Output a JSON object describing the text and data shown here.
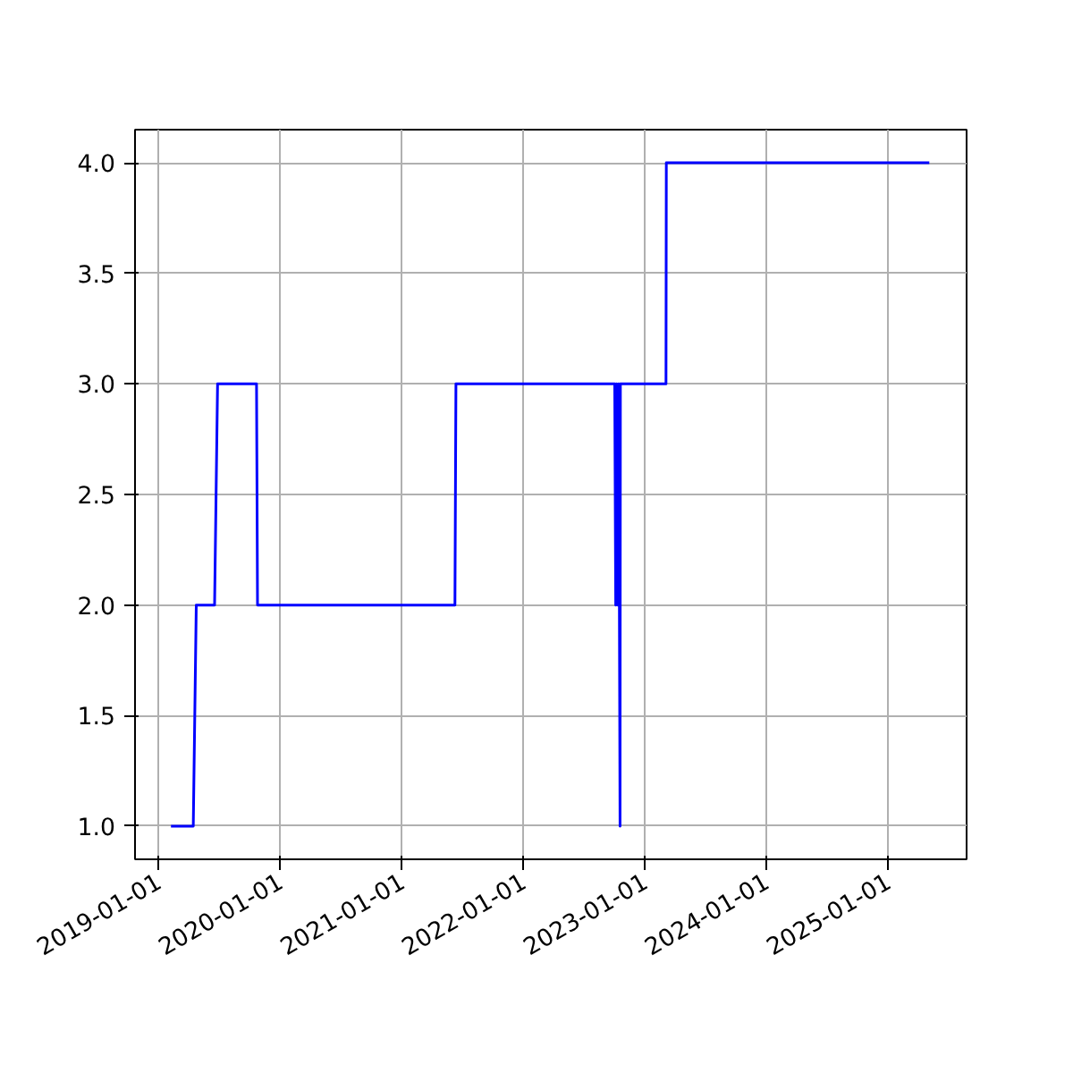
{
  "chart_data": {
    "type": "line",
    "x": [
      "2019-02-07",
      "2019-04-15",
      "2019-04-24",
      "2019-06-18",
      "2019-06-27",
      "2019-10-22",
      "2019-10-25",
      "2021-06-09",
      "2021-06-12",
      "2022-10-02",
      "2022-10-05",
      "2022-10-08",
      "2022-10-11",
      "2022-10-14",
      "2022-10-18",
      "2022-10-19",
      "2023-03-05",
      "2023-03-06",
      "2025-05-04"
    ],
    "series": [
      {
        "color": "#0000ff",
        "values": [
          1,
          1,
          2,
          2,
          3,
          3,
          2,
          2,
          3,
          3,
          2,
          3,
          2,
          3,
          1,
          3,
          3,
          4,
          4
        ]
      }
    ],
    "xlim": [
      "2018-10-22",
      "2025-08-24"
    ],
    "xticks": [
      "2019-01-01",
      "2020-01-01",
      "2021-01-01",
      "2022-01-01",
      "2023-01-01",
      "2024-01-01",
      "2025-01-01"
    ],
    "ylim": [
      0.85,
      4.15
    ],
    "yticks": [
      {
        "value": 1,
        "label": "1.0"
      },
      {
        "value": 1.5,
        "label": "1.5"
      },
      {
        "value": 2,
        "label": "2.0"
      },
      {
        "value": 2.5,
        "label": "2.5"
      },
      {
        "value": 3,
        "label": "3.0"
      },
      {
        "value": 3.5,
        "label": "3.5"
      },
      {
        "value": 4,
        "label": "4.0"
      }
    ],
    "grid": true
  }
}
